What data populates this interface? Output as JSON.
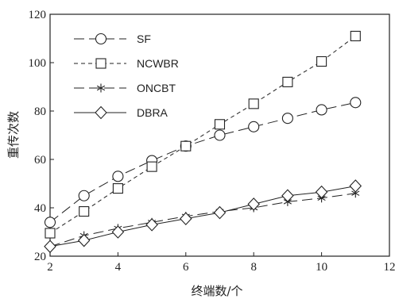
{
  "chart_data": {
    "type": "line",
    "title": "",
    "xlabel": "终端数/个",
    "ylabel": "重传次数",
    "xlim": [
      2,
      12
    ],
    "ylim": [
      20,
      120
    ],
    "xticks": [
      2,
      4,
      6,
      8,
      10,
      12
    ],
    "yticks": [
      20,
      40,
      60,
      80,
      100,
      120
    ],
    "grid": false,
    "legend_position": "top-left",
    "x": [
      2,
      3,
      4,
      5,
      6,
      7,
      8,
      9,
      10,
      11
    ],
    "series": [
      {
        "name": "SF",
        "marker": "circle",
        "line_style": "long-dash",
        "values": [
          34,
          45,
          53,
          59.5,
          65.5,
          70,
          73.5,
          77,
          80.5,
          83.5
        ]
      },
      {
        "name": "NCWBR",
        "marker": "square",
        "line_style": "short-dash",
        "values": [
          29.5,
          38.5,
          48,
          57,
          65.5,
          74.5,
          83,
          92,
          100.5,
          111
        ]
      },
      {
        "name": "ONCBT",
        "marker": "asterisk",
        "line_style": "long-dash",
        "values": [
          24,
          28.5,
          31.5,
          34,
          36.5,
          38.5,
          40,
          42.5,
          44,
          46
        ]
      },
      {
        "name": "DBRA",
        "marker": "diamond",
        "line_style": "solid",
        "values": [
          24,
          26.5,
          30,
          33,
          35.5,
          38,
          41.5,
          45,
          46.5,
          49
        ]
      }
    ]
  }
}
